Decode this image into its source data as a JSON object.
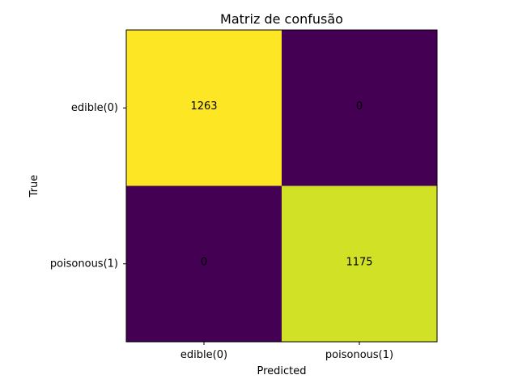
{
  "chart_data": {
    "type": "heatmap",
    "title": "Matriz de confusão",
    "xlabel": "Predicted",
    "ylabel": "True",
    "x_categories": [
      "edible(0)",
      "poisonous(1)"
    ],
    "y_categories": [
      "edible(0)",
      "poisonous(1)"
    ],
    "values": [
      [
        1263,
        0
      ],
      [
        0,
        1175
      ]
    ],
    "colormap": "viridis",
    "vmin": 0,
    "vmax": 1263,
    "colors": {
      "low": "#440154",
      "high": "#fde725"
    }
  }
}
